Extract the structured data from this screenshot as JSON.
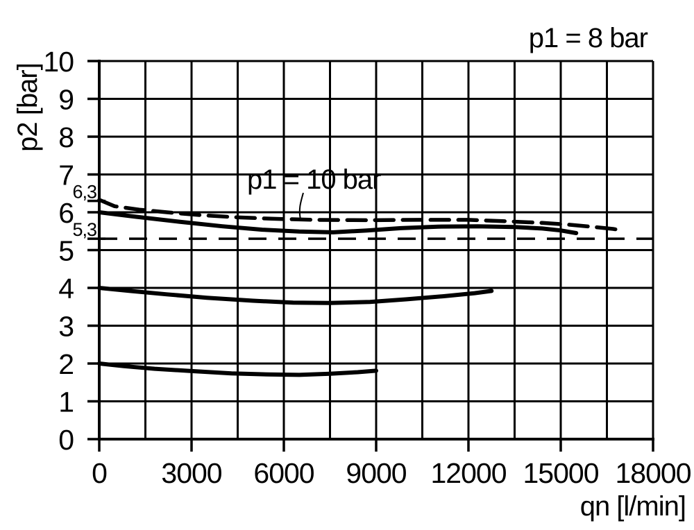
{
  "colors": {
    "foreground": "#000000",
    "background": "#ffffff"
  },
  "chart_data": {
    "type": "line",
    "title": "",
    "xlabel": "qn [l/min]",
    "ylabel": "p2 [bar]",
    "xlim": [
      0,
      18000
    ],
    "ylim": [
      0,
      10
    ],
    "grid": "on",
    "x_grid_step": 1500,
    "y_grid_step": 1,
    "legend": "none",
    "x_ticks": [
      {
        "value": 0,
        "label": "0"
      },
      {
        "value": 3000,
        "label": "3000"
      },
      {
        "value": 6000,
        "label": "6000"
      },
      {
        "value": 9000,
        "label": "9000"
      },
      {
        "value": 12000,
        "label": "12000"
      },
      {
        "value": 15000,
        "label": "15000"
      },
      {
        "value": 18000,
        "label": "18000"
      }
    ],
    "y_ticks": [
      {
        "value": 10,
        "label": "10"
      },
      {
        "value": 9,
        "label": "9"
      },
      {
        "value": 8,
        "label": "8"
      },
      {
        "value": 7,
        "label": "7"
      },
      {
        "value": 6,
        "label": "6"
      },
      {
        "value": 5,
        "label": "5"
      },
      {
        "value": 4,
        "label": "4"
      },
      {
        "value": 3,
        "label": "3"
      },
      {
        "value": 2,
        "label": "2"
      },
      {
        "value": 1,
        "label": "1"
      },
      {
        "value": 0,
        "label": "0"
      }
    ],
    "extra_y_marks": [
      {
        "value": 6.3,
        "label": "6,3",
        "style": "tick"
      },
      {
        "value": 5.3,
        "label": "5,3",
        "style": "dashed-line"
      }
    ],
    "annotations": {
      "p1_8bar": {
        "text": "p1 = 8 bar"
      },
      "p1_10bar": {
        "text": "p1 = 10 bar"
      }
    },
    "series": [
      {
        "name": "p1-10bar-curve",
        "style": "dashed",
        "points": [
          [
            0,
            6.33
          ],
          [
            500,
            6.16
          ],
          [
            1300,
            6.07
          ],
          [
            2200,
            6.0
          ],
          [
            3200,
            5.93
          ],
          [
            4400,
            5.87
          ],
          [
            5600,
            5.83
          ],
          [
            7000,
            5.8
          ],
          [
            8700,
            5.79
          ],
          [
            10400,
            5.8
          ],
          [
            12000,
            5.8
          ],
          [
            13300,
            5.76
          ],
          [
            14400,
            5.72
          ],
          [
            15300,
            5.67
          ],
          [
            16100,
            5.61
          ],
          [
            16700,
            5.56
          ],
          [
            17000,
            5.52
          ]
        ]
      },
      {
        "name": "p1-8bar-setting-6bar-curve",
        "style": "solid",
        "points": [
          [
            0,
            6.0
          ],
          [
            1200,
            5.88
          ],
          [
            2600,
            5.75
          ],
          [
            4000,
            5.63
          ],
          [
            5300,
            5.54
          ],
          [
            6500,
            5.49
          ],
          [
            7600,
            5.47
          ],
          [
            8700,
            5.52
          ],
          [
            9800,
            5.58
          ],
          [
            11000,
            5.62
          ],
          [
            12300,
            5.63
          ],
          [
            13500,
            5.61
          ],
          [
            14400,
            5.57
          ],
          [
            15000,
            5.52
          ],
          [
            15500,
            5.45
          ]
        ]
      },
      {
        "name": "p1-8bar-setting-4bar-curve",
        "style": "solid",
        "points": [
          [
            0,
            4.0
          ],
          [
            1000,
            3.92
          ],
          [
            2200,
            3.83
          ],
          [
            3500,
            3.74
          ],
          [
            5000,
            3.66
          ],
          [
            6300,
            3.61
          ],
          [
            7500,
            3.6
          ],
          [
            8800,
            3.63
          ],
          [
            10000,
            3.7
          ],
          [
            11200,
            3.78
          ],
          [
            12200,
            3.86
          ],
          [
            12750,
            3.92
          ]
        ]
      },
      {
        "name": "p1-8bar-setting-2bar-curve",
        "style": "solid",
        "points": [
          [
            0,
            2.0
          ],
          [
            800,
            1.93
          ],
          [
            1800,
            1.86
          ],
          [
            3000,
            1.8
          ],
          [
            4300,
            1.74
          ],
          [
            5500,
            1.71
          ],
          [
            6500,
            1.7
          ],
          [
            7500,
            1.73
          ],
          [
            8400,
            1.77
          ],
          [
            9000,
            1.81
          ]
        ]
      }
    ]
  }
}
